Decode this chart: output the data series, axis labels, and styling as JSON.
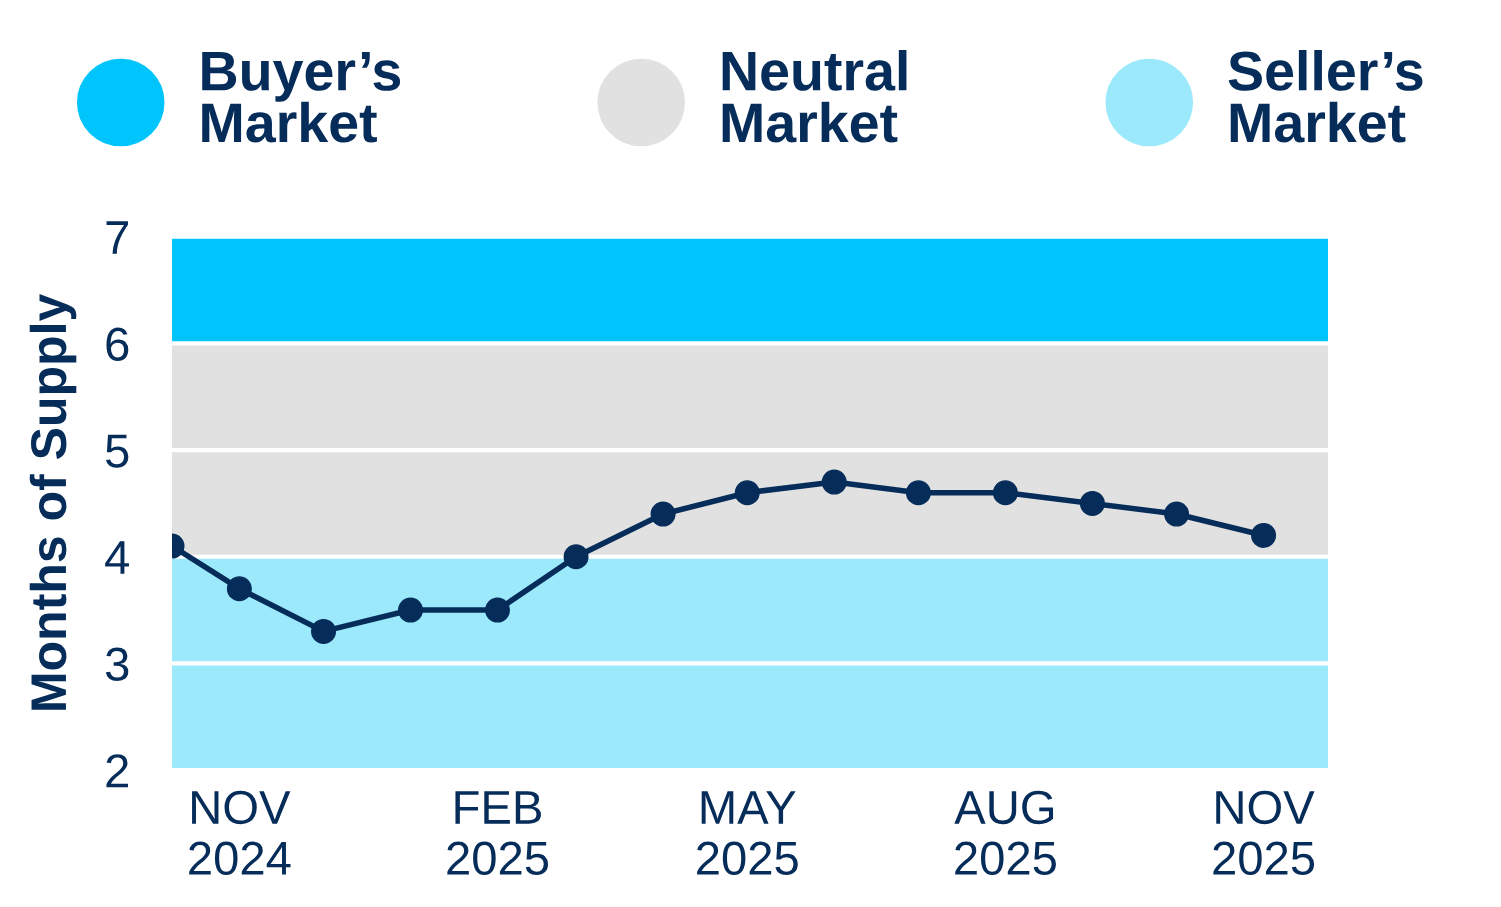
{
  "chart_data": {
    "type": "line",
    "ylabel": "Months of Supply",
    "x": [
      "2024-10-08",
      "2024-11",
      "2024-12",
      "2025-01",
      "2025-02",
      "2025-03",
      "2025-04",
      "2025-05",
      "2025-06",
      "2025-07",
      "2025-08",
      "2025-09",
      "2025-10",
      "2025-11"
    ],
    "series": [
      {
        "color": "#062d5a",
        "values": [
          4.1,
          3.7,
          3.3,
          3.5,
          3.5,
          4.0,
          4.4,
          4.6,
          4.7,
          4.6,
          4.6,
          4.5,
          4.4,
          4.2
        ]
      }
    ],
    "xlim": [
      "2024-10-08",
      "2025-11-24"
    ],
    "xticks": [
      {
        "value": "2024-11",
        "label": "NOV\n2024"
      },
      {
        "value": "2025-02",
        "label": "FEB\n2025"
      },
      {
        "value": "2025-05",
        "label": "MAY\n2025"
      },
      {
        "value": "2025-08",
        "label": "AUG\n2025"
      },
      {
        "value": "2025-11",
        "label": "NOV\n2025"
      }
    ],
    "ylim": [
      2,
      7
    ],
    "yticks": [
      2,
      3,
      4,
      5,
      6,
      7
    ],
    "bands": [
      {
        "axis": "y",
        "from": 6,
        "to": 7,
        "label": "Buyer’s\nMarket",
        "color": "#00c5fc"
      },
      {
        "axis": "y",
        "from": 4,
        "to": 6,
        "label": "Neutral\nMarket",
        "color": "#e1e1e1"
      },
      {
        "axis": "y",
        "from": 2,
        "to": 4,
        "label": "Seller’s\nMarket",
        "color": "#9ce9fc"
      }
    ],
    "grid": "y",
    "legend": "top",
    "marker": "circle",
    "line_style": "solid"
  }
}
